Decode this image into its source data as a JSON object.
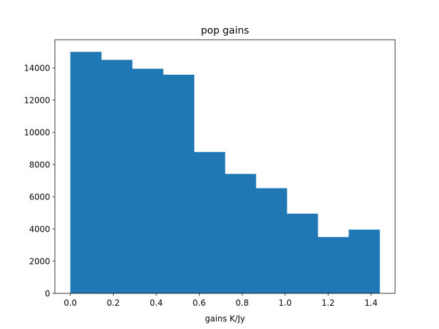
{
  "chart_data": {
    "type": "bar",
    "title": "pop gains",
    "xlabel": "gains K/Jy",
    "ylabel": "",
    "bin_edges": [
      0.0,
      0.144,
      0.288,
      0.432,
      0.576,
      0.72,
      0.864,
      1.008,
      1.152,
      1.296,
      1.44
    ],
    "values": [
      15000,
      14500,
      13950,
      13580,
      8780,
      7420,
      6530,
      4950,
      3500,
      3960
    ],
    "xlim": [
      -0.072,
      1.512
    ],
    "ylim": [
      0,
      15750
    ],
    "xticks": [
      0.0,
      0.2,
      0.4,
      0.6,
      0.8,
      1.0,
      1.2,
      1.4
    ],
    "xtick_labels": [
      "0.0",
      "0.2",
      "0.4",
      "0.6",
      "0.8",
      "1.0",
      "1.2",
      "1.4"
    ],
    "yticks": [
      0,
      2000,
      4000,
      6000,
      8000,
      10000,
      12000,
      14000
    ],
    "ytick_labels": [
      "0",
      "2000",
      "4000",
      "6000",
      "8000",
      "10000",
      "12000",
      "14000"
    ],
    "bar_color": "#1f77b4",
    "grid": false,
    "legend": "none"
  }
}
